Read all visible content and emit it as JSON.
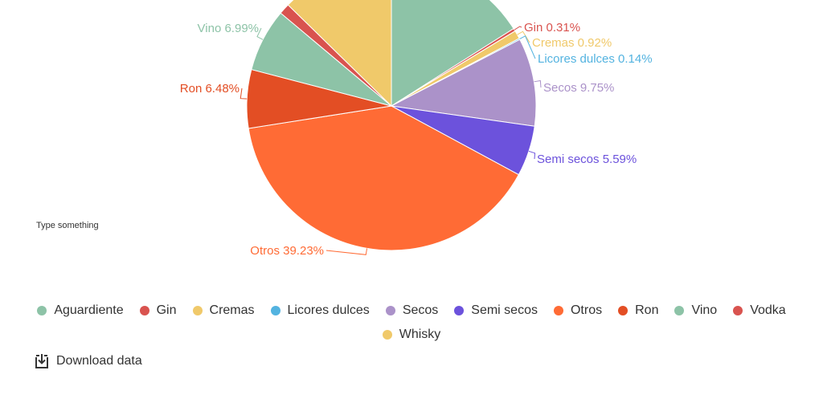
{
  "chart_data": {
    "type": "pie",
    "slices": [
      {
        "label": "Aguardiente",
        "value": 15.85,
        "display": "",
        "color": "#8dc3a7"
      },
      {
        "label": "Gin",
        "value": 0.31,
        "display": "Gin 0.31%",
        "color": "#d9534f"
      },
      {
        "label": "Cremas",
        "value": 0.92,
        "display": "Cremas 0.92%",
        "color": "#f0c96a"
      },
      {
        "label": "Licores dulces",
        "value": 0.14,
        "display": "Licores dulces 0.14%",
        "color": "#53b3e0"
      },
      {
        "label": "Secos",
        "value": 9.75,
        "display": "Secos 9.75%",
        "color": "#ab92c9"
      },
      {
        "label": "Semi secos",
        "value": 5.59,
        "display": "Semi secos 5.59%",
        "color": "#6c52dc"
      },
      {
        "label": "Otros",
        "value": 39.23,
        "display": "Otros 39.23%",
        "color": "#ff6b35"
      },
      {
        "label": "Ron",
        "value": 6.48,
        "display": "Ron 6.48%",
        "color": "#e34e24"
      },
      {
        "label": "Vino",
        "value": 6.99,
        "display": "Vino 6.99%",
        "color": "#8dc3a7"
      },
      {
        "label": "Vodka",
        "value": 1.2,
        "display": "",
        "color": "#d9534f"
      },
      {
        "label": "Whisky",
        "value": 12.54,
        "display": "",
        "color": "#f0c96a"
      }
    ]
  },
  "annotation": "Type something",
  "legend": [
    {
      "label": "Aguardiente",
      "color": "#8dc3a7"
    },
    {
      "label": "Gin",
      "color": "#d9534f"
    },
    {
      "label": "Cremas",
      "color": "#f0c96a"
    },
    {
      "label": "Licores dulces",
      "color": "#53b3e0"
    },
    {
      "label": "Secos",
      "color": "#ab92c9"
    },
    {
      "label": "Semi secos",
      "color": "#6c52dc"
    },
    {
      "label": "Otros",
      "color": "#ff6b35"
    },
    {
      "label": "Ron",
      "color": "#e34e24"
    },
    {
      "label": "Vino",
      "color": "#8dc3a7"
    },
    {
      "label": "Vodka",
      "color": "#d9534f"
    },
    {
      "label": "Whisky",
      "color": "#f0c96a"
    }
  ],
  "download": {
    "label": "Download data",
    "icon": "download-icon"
  }
}
